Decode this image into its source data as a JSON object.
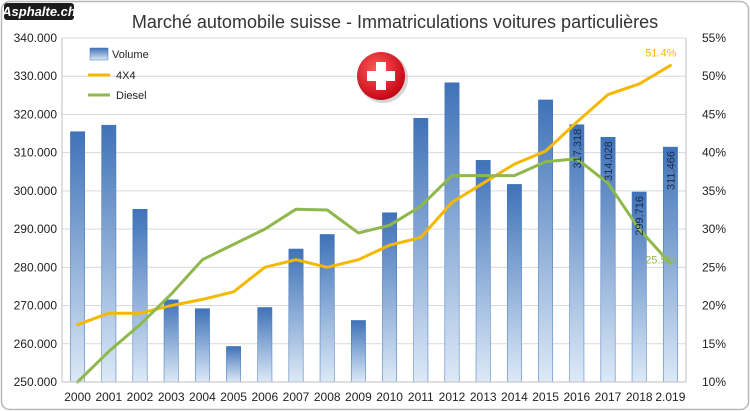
{
  "logo": {
    "text": "Asphalte.ch"
  },
  "chart_data": {
    "type": "bar",
    "title": "Marché automobile suisse - Immatriculations voitures particulières",
    "categories": [
      "2000",
      "2001",
      "2002",
      "2003",
      "2004",
      "2005",
      "2006",
      "2007",
      "2008",
      "2009",
      "2010",
      "2011",
      "2012",
      "2013",
      "2014",
      "2015",
      "2016",
      "2017",
      "2018",
      "2.019"
    ],
    "ylim": [
      250000,
      340000
    ],
    "y2lim": [
      0.1,
      0.55
    ],
    "yticks": [
      "250.000",
      "260.000",
      "270.000",
      "280.000",
      "290.000",
      "300.000",
      "310.000",
      "320.000",
      "330.000",
      "340.000"
    ],
    "y2ticks": [
      "10%",
      "15%",
      "20%",
      "25%",
      "30%",
      "35%",
      "40%",
      "45%",
      "50%",
      "55%"
    ],
    "series": [
      {
        "name": "Volume",
        "type": "bar",
        "axis": "left",
        "color": "#4a7fc1",
        "values": [
          315500,
          317200,
          295200,
          271500,
          269200,
          259300,
          269500,
          284800,
          288600,
          266100,
          294300,
          319000,
          328300,
          308000,
          301700,
          323800,
          317318,
          314028,
          299716,
          311466
        ]
      },
      {
        "name": "4X4",
        "type": "line",
        "axis": "right",
        "color": "#f5b800",
        "values": [
          0.175,
          0.19,
          0.19,
          0.2,
          0.208,
          0.218,
          0.25,
          0.26,
          0.25,
          0.26,
          0.279,
          0.289,
          0.335,
          0.36,
          0.385,
          0.402,
          0.44,
          0.476,
          0.49,
          0.514
        ]
      },
      {
        "name": "Diesel",
        "type": "line",
        "axis": "right",
        "color": "#8fb84c",
        "values": [
          0.1,
          0.14,
          0.175,
          0.215,
          0.26,
          0.28,
          0.3,
          0.326,
          0.325,
          0.295,
          0.305,
          0.33,
          0.37,
          0.37,
          0.37,
          0.388,
          0.392,
          0.36,
          0.3,
          0.255
        ]
      }
    ],
    "data_labels": [
      {
        "series": "Volume",
        "index": 16,
        "text": "317.318"
      },
      {
        "series": "Volume",
        "index": 17,
        "text": "314.028"
      },
      {
        "series": "Volume",
        "index": 18,
        "text": "299.716"
      },
      {
        "series": "Volume",
        "index": 19,
        "text": "311.466"
      },
      {
        "series": "4X4",
        "index": 19,
        "text": "51.4%"
      },
      {
        "series": "Diesel",
        "index": 19,
        "text": "25.5%"
      }
    ],
    "legend": [
      "Volume",
      "4X4",
      "Diesel"
    ],
    "legend_position": "top-left"
  },
  "colors": {
    "frame": "#b8b8b8",
    "grid": "#d9d9d9",
    "flag_red": "#e30613",
    "logo_bg": "#1c1c1c"
  }
}
